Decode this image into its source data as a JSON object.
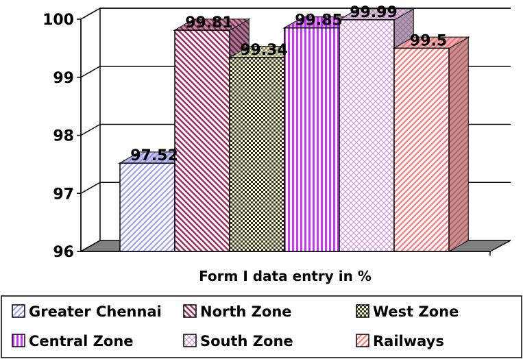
{
  "chart_data": {
    "type": "bar",
    "title": "",
    "xlabel": "Form I data entry in %",
    "ylabel": "",
    "ylim": [
      96,
      100
    ],
    "yticks": [
      "96",
      "97",
      "98",
      "99",
      "100"
    ],
    "grid": true,
    "legend_position": "bottom",
    "series": [
      {
        "name": "Greater Chennai",
        "value": 97.52,
        "label": "97.52",
        "color": "#9999ff",
        "pattern": "diag-up"
      },
      {
        "name": "North Zone",
        "value": 99.81,
        "label": "99.81",
        "color": "#993366",
        "pattern": "diag-down"
      },
      {
        "name": "West Zone",
        "value": 99.34,
        "label": "99.34",
        "color": "#ffffcc",
        "pattern": "checker"
      },
      {
        "name": "Central Zone",
        "value": 99.85,
        "label": "99.85",
        "color": "#cc33ff",
        "pattern": "vertical"
      },
      {
        "name": "South Zone",
        "value": 99.99,
        "label": "99.99",
        "color": "#cc99cc",
        "pattern": "crosshatch"
      },
      {
        "name": "Railways",
        "value": 99.5,
        "label": "99.5",
        "color": "#ff8080",
        "pattern": "diag-up-dense"
      }
    ]
  }
}
